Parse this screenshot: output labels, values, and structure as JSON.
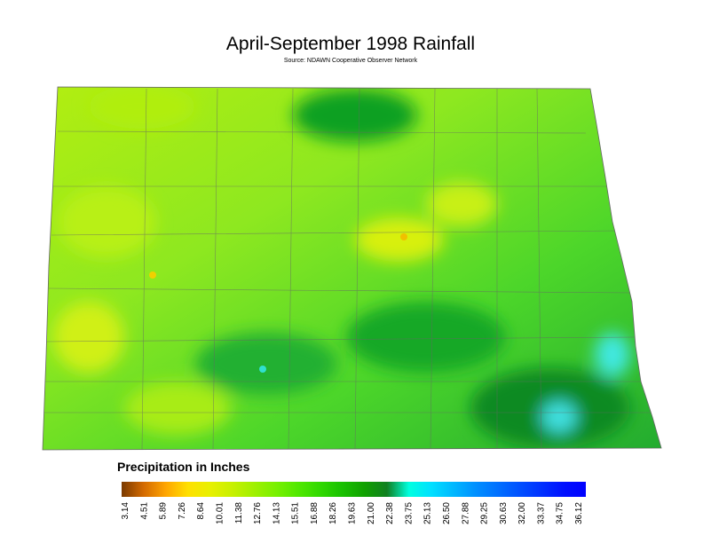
{
  "header": {
    "title": "April-September 1998 Rainfall",
    "source": "Source: NDAWN Cooperative Observer Network"
  },
  "legend": {
    "title": "Precipitation in Inches",
    "labels": [
      "3.14",
      "4.51",
      "5.89",
      "7.26",
      "8.64",
      "10.01",
      "11.38",
      "12.76",
      "14.13",
      "15.51",
      "16.88",
      "18.26",
      "19.63",
      "21.00",
      "22.38",
      "23.75",
      "25.13",
      "26.50",
      "27.88",
      "29.25",
      "30.63",
      "32.00",
      "33.37",
      "34.75",
      "36.12"
    ],
    "colors": [
      "#7a3a00",
      "#d46a00",
      "#ffa500",
      "#ffe000",
      "#e8f000",
      "#c8f000",
      "#a0f000",
      "#78f000",
      "#50e800",
      "#30d800",
      "#18c000",
      "#10a000",
      "#108020",
      "#00ffe0",
      "#00e0ff",
      "#00b8ff",
      "#0090ff",
      "#0070ff",
      "#0050ff",
      "#0030ff",
      "#0010ff",
      "#0000ff"
    ]
  }
}
